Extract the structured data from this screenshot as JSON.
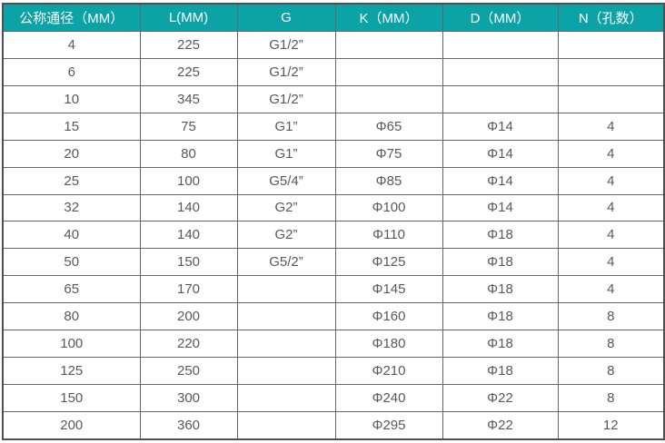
{
  "colors": {
    "header_bg": "#0ba3a6",
    "header_text": "#ffffff",
    "cell_text": "#595959",
    "grid_border": "#666666",
    "outer_border": "#4f4f4f"
  },
  "table": {
    "columns": [
      {
        "label": "公称通径（MM）"
      },
      {
        "label": "L(MM)"
      },
      {
        "label": "G"
      },
      {
        "label": "K（MM）"
      },
      {
        "label": "D（MM）"
      },
      {
        "label": "N（孔数）"
      }
    ],
    "rows": [
      [
        "4",
        "225",
        "G1/2”",
        "",
        "",
        ""
      ],
      [
        "6",
        "225",
        "G1/2”",
        "",
        "",
        ""
      ],
      [
        "10",
        "345",
        "G1/2”",
        "",
        "",
        ""
      ],
      [
        "15",
        "75",
        "G1”",
        "Φ65",
        "Φ14",
        "4"
      ],
      [
        "20",
        "80",
        "G1”",
        "Φ75",
        "Φ14",
        "4"
      ],
      [
        "25",
        "100",
        "G5/4”",
        "Φ85",
        "Φ14",
        "4"
      ],
      [
        "32",
        "140",
        "G2”",
        "Φ100",
        "Φ14",
        "4"
      ],
      [
        "40",
        "140",
        "G2”",
        "Φ110",
        "Φ18",
        "4"
      ],
      [
        "50",
        "150",
        "G5/2”",
        "Φ125",
        "Φ18",
        "4"
      ],
      [
        "65",
        "170",
        "",
        "Φ145",
        "Φ18",
        "4"
      ],
      [
        "80",
        "200",
        "",
        "Φ160",
        "Φ18",
        "8"
      ],
      [
        "100",
        "220",
        "",
        "Φ180",
        "Φ18",
        "8"
      ],
      [
        "125",
        "250",
        "",
        "Φ210",
        "Φ18",
        "8"
      ],
      [
        "150",
        "300",
        "",
        "Φ240",
        "Φ22",
        "8"
      ],
      [
        "200",
        "360",
        "",
        "Φ295",
        "Φ22",
        "12"
      ]
    ]
  }
}
